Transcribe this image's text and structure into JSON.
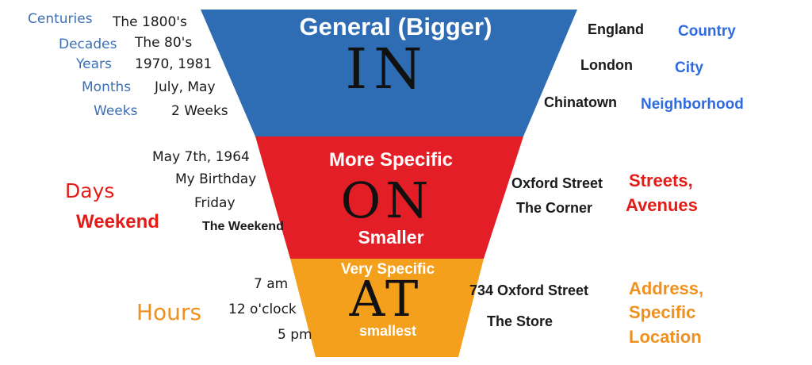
{
  "funnel": {
    "colors": {
      "top": "#2e6db4",
      "middle": "#e41e26",
      "bottom": "#f4a01c"
    },
    "in": {
      "title": "General (Bigger)",
      "word": "IN"
    },
    "on": {
      "title": "More Specific",
      "word": "ON",
      "subtitle": "Smaller"
    },
    "at": {
      "title": "Very Specific",
      "word": "AT",
      "subtitle": "smallest"
    }
  },
  "time": {
    "in": [
      {
        "category": "Centuries",
        "example": "The 1800's"
      },
      {
        "category": "Decades",
        "example": "The 80's"
      },
      {
        "category": "Years",
        "example": "1970, 1981"
      },
      {
        "category": "Months",
        "example": "July, May"
      },
      {
        "category": "Weeks",
        "example": "2 Weeks"
      }
    ],
    "on": {
      "examples": [
        "May 7th, 1964",
        "My Birthday",
        "Friday",
        "The Weekend"
      ],
      "category_line1": "Days",
      "category_line2": "Weekend"
    },
    "at": {
      "examples": [
        "7 am",
        "12 o'clock",
        "5 pm"
      ],
      "category": "Hours"
    }
  },
  "place": {
    "in": [
      {
        "example": "England",
        "category": "Country"
      },
      {
        "example": "London",
        "category": "City"
      },
      {
        "example": "Chinatown",
        "category": "Neighborhood"
      }
    ],
    "on": {
      "examples": [
        "Oxford Street",
        "The Corner"
      ],
      "category_line1": "Streets,",
      "category_line2": "Avenues"
    },
    "at": {
      "examples": [
        "734 Oxford Street",
        "The Store"
      ],
      "category_line1": "Address,",
      "category_line2": "Specific",
      "category_line3": "Location"
    }
  }
}
